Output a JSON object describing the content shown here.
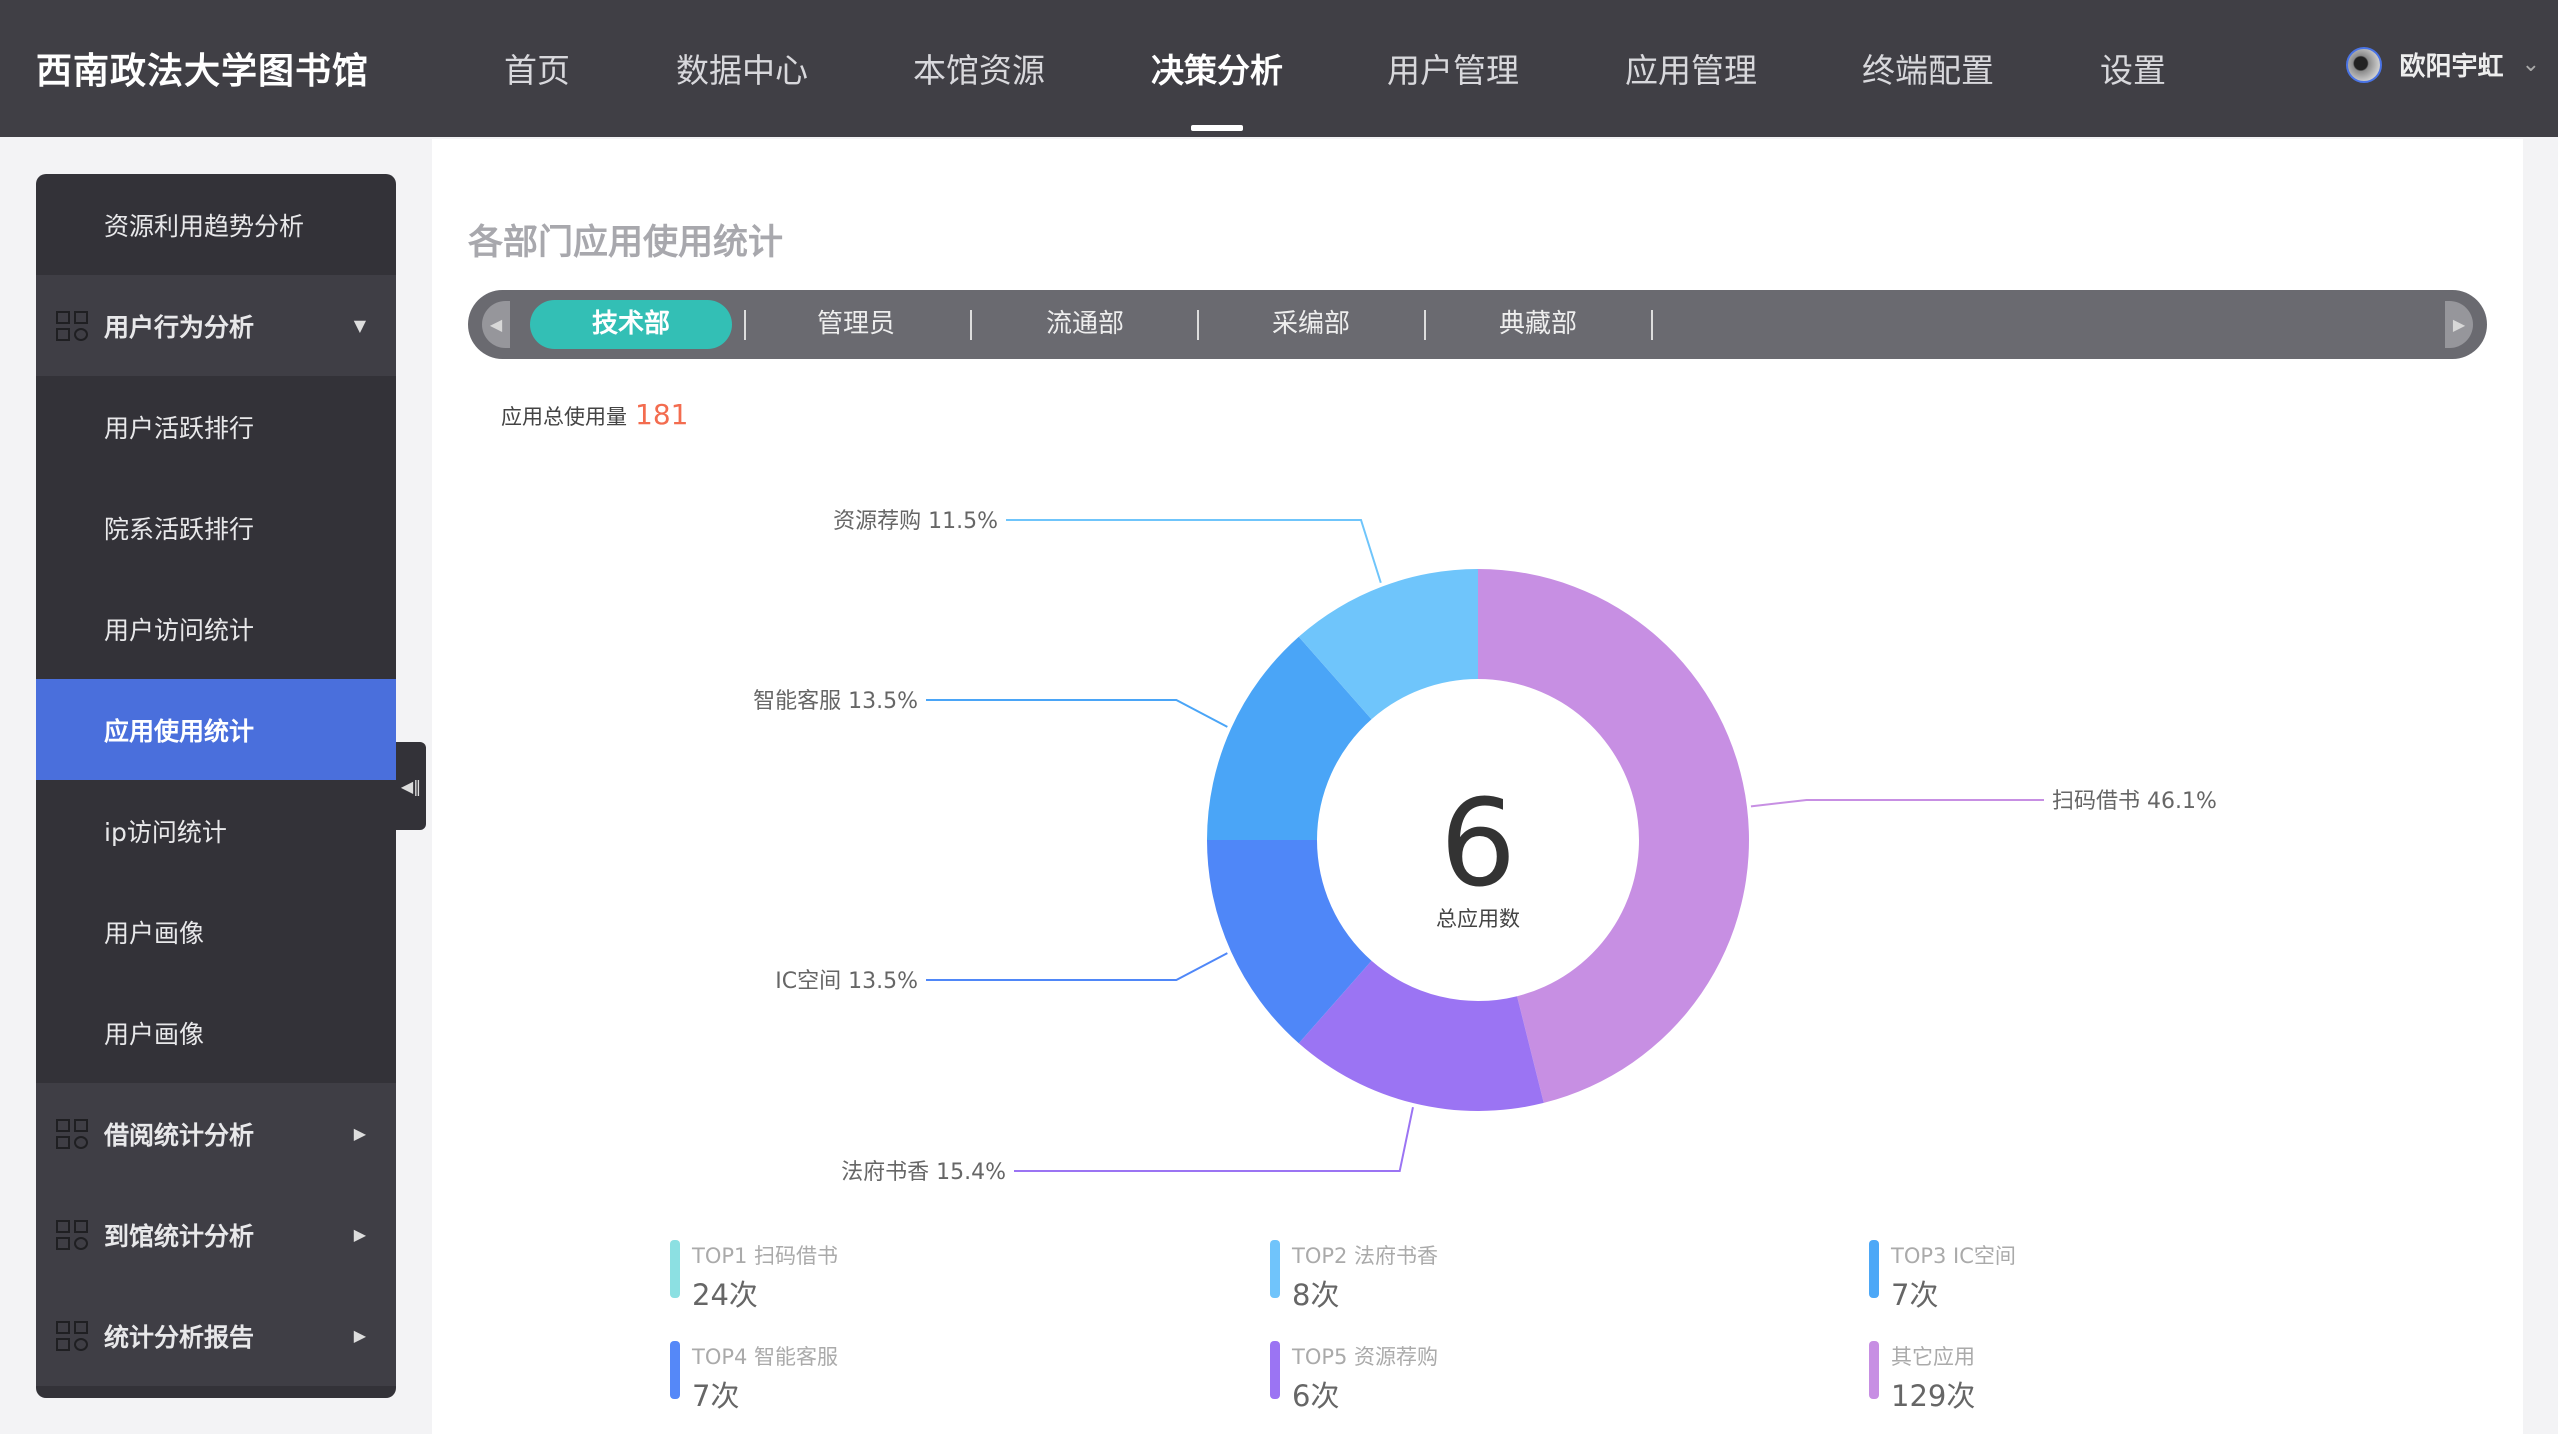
{
  "header": {
    "logo": "西南政法大学图书馆",
    "nav": [
      {
        "label": "首页"
      },
      {
        "label": "数据中心"
      },
      {
        "label": "本馆资源"
      },
      {
        "label": "决策分析",
        "active": true
      },
      {
        "label": "用户管理"
      },
      {
        "label": "应用管理"
      },
      {
        "label": "终端配置"
      },
      {
        "label": "设置"
      }
    ],
    "user": {
      "name": "欧阳宇虹"
    }
  },
  "sidebar": {
    "items": [
      {
        "label": "资源利用趋势分析",
        "type": "item"
      },
      {
        "label": "用户行为分析",
        "type": "group",
        "expanded": true
      },
      {
        "label": "用户活跃排行",
        "type": "item"
      },
      {
        "label": "院系活跃排行",
        "type": "item"
      },
      {
        "label": "用户访问统计",
        "type": "item"
      },
      {
        "label": "应用使用统计",
        "type": "item",
        "active": true
      },
      {
        "label": "ip访问统计",
        "type": "item"
      },
      {
        "label": "用户画像",
        "type": "item"
      },
      {
        "label": "用户画像",
        "type": "item"
      },
      {
        "label": "借阅统计分析",
        "type": "group"
      },
      {
        "label": "到馆统计分析",
        "type": "group"
      },
      {
        "label": "统计分析报告",
        "type": "group"
      }
    ]
  },
  "main": {
    "title": "各部门应用使用统计",
    "tabs": [
      {
        "label": "技术部",
        "active": true
      },
      {
        "label": "管理员"
      },
      {
        "label": "流通部"
      },
      {
        "label": "采编部"
      },
      {
        "label": "典藏部"
      }
    ],
    "total_label": "应用总使用量",
    "total_value": "181"
  },
  "chart_data": {
    "type": "pie",
    "center_value": "6",
    "center_label": "总应用数",
    "slices": [
      {
        "name": "扫码借书",
        "percent": 46.1,
        "label": "扫码借书 46.1%",
        "color": "#c78fe3"
      },
      {
        "name": "法府书香",
        "percent": 15.4,
        "label": "法府书香 15.4%",
        "color": "#9b74f3"
      },
      {
        "name": "IC空间",
        "percent": 13.5,
        "label": "IC空间 13.5%",
        "color": "#4f87f8"
      },
      {
        "name": "智能客服",
        "percent": 13.5,
        "label": "智能客服 13.5%",
        "color": "#4aa5f7"
      },
      {
        "name": "资源荐购",
        "percent": 11.5,
        "label": "资源荐购 11.5%",
        "color": "#6fc5fb"
      }
    ]
  },
  "legend": [
    {
      "label": "TOP1 扫码借书",
      "value": "24次",
      "color": "#8ce0e2"
    },
    {
      "label": "TOP2 法府书香",
      "value": "8次",
      "color": "#70c4fb"
    },
    {
      "label": "TOP3 IC空间",
      "value": "7次",
      "color": "#4da8f7"
    },
    {
      "label": "TOP4 智能客服",
      "value": "7次",
      "color": "#5588f8"
    },
    {
      "label": "TOP5 资源荐购",
      "value": "6次",
      "color": "#9b74f3"
    },
    {
      "label": "其它应用",
      "value": "129次",
      "color": "#c78fe3"
    }
  ]
}
